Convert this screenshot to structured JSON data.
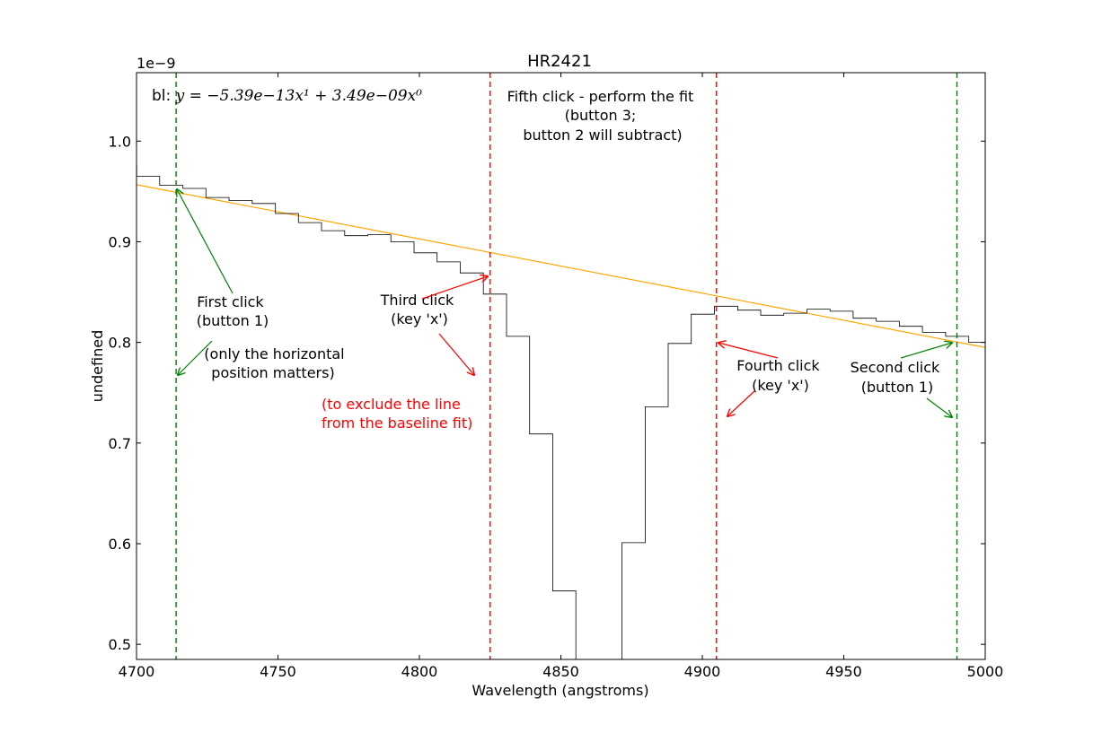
{
  "chart_data": {
    "type": "line",
    "title": "HR2421",
    "xlabel": "Wavelength (angstroms)",
    "ylabel": "undefined",
    "offset_label": "1e−9",
    "xlim": [
      4700,
      5000
    ],
    "ylim": [
      0.485,
      1.068
    ],
    "xticks": [
      "4700",
      "4750",
      "4800",
      "4850",
      "4900",
      "4950",
      "5000"
    ],
    "yticks": [
      "0.5",
      "0.6",
      "0.7",
      "0.8",
      "0.9",
      "1.0"
    ],
    "grid": false,
    "spectrum": {
      "name": "spectrum",
      "style": "steps-mid",
      "color": "#000000",
      "x": [
        4696,
        4704.1,
        4712.3,
        4720.5,
        4728.6,
        4736.8,
        4745,
        4753.2,
        4761.3,
        4769.5,
        4777.7,
        4785.8,
        4794,
        4802.2,
        4810.3,
        4818.5,
        4826.7,
        4834.9,
        4843,
        4851.2,
        4859.4,
        4867.5,
        4875.7,
        4883.9,
        4892,
        4900.2,
        4908.4,
        4916.6,
        4924.7,
        4932.9,
        4941.1,
        4949.2,
        4957.4,
        4965.6,
        4973.7,
        4981.9,
        4990.1,
        4998.3
      ],
      "y": [
        0.975,
        0.965,
        0.956,
        0.953,
        0.944,
        0.941,
        0.938,
        0.928,
        0.919,
        0.911,
        0.906,
        0.907,
        0.9,
        0.889,
        0.88,
        0.869,
        0.848,
        0.806,
        0.709,
        0.553,
        0.43,
        0.415,
        0.601,
        0.736,
        0.799,
        0.828,
        0.836,
        0.832,
        0.827,
        0.829,
        0.833,
        0.831,
        0.824,
        0.821,
        0.816,
        0.81,
        0.806,
        0.8
      ]
    },
    "baseline_fit": {
      "name": "baseline",
      "color": "#ffa500",
      "slope": -5.39e-13,
      "intercept": 3.49e-09,
      "scale": 1e-09,
      "equation_prefix": "bl: ",
      "equation": "y = −5.39e−13x¹ + 3.49e−09x⁰"
    },
    "vlines": [
      {
        "x": 4714,
        "color": "#008000",
        "style": "dashed",
        "name": "first-click-line"
      },
      {
        "x": 4825,
        "color": "#ff0000",
        "style": "dashed",
        "name": "third-click-line"
      },
      {
        "x": 4905,
        "color": "#ff0000",
        "style": "dashed",
        "name": "fourth-click-line"
      },
      {
        "x": 4990,
        "color": "#008000",
        "style": "dashed",
        "name": "second-click-line"
      }
    ],
    "annotations": [
      {
        "name": "first-click",
        "lines": [
          "First click",
          "(button 1)"
        ],
        "color": "#000000"
      },
      {
        "name": "only-horizontal",
        "lines": [
          "(only the horizontal",
          "position matters)"
        ],
        "color": "#000000"
      },
      {
        "name": "third-click",
        "lines": [
          "Third click",
          "(key 'x')"
        ],
        "color": "#000000"
      },
      {
        "name": "exclude-line",
        "lines": [
          "(to exclude the line",
          "from the baseline fit)"
        ],
        "color": "#ff0000"
      },
      {
        "name": "fifth-click",
        "lines": [
          "Fifth click - perform the fit",
          "(button 3;",
          "button 2 will subtract)"
        ],
        "color": "#000000"
      },
      {
        "name": "fourth-click",
        "lines": [
          "Fourth click",
          "(key 'x')"
        ],
        "color": "#000000"
      },
      {
        "name": "second-click",
        "lines": [
          "Second click",
          "(button 1)"
        ],
        "color": "#000000"
      }
    ]
  }
}
